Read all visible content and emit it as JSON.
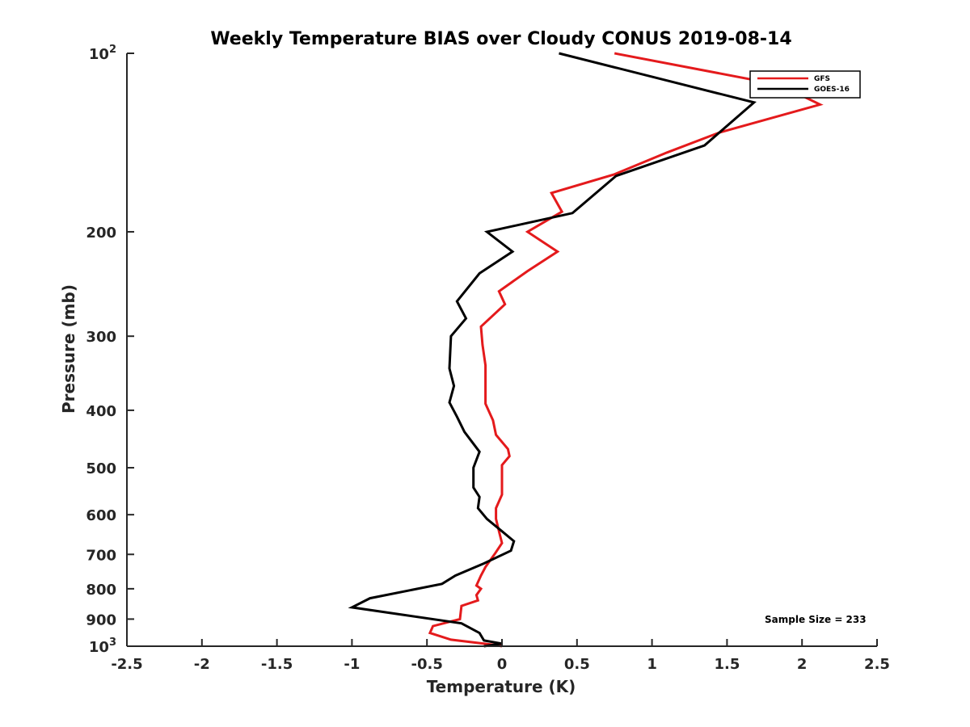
{
  "chart_data": {
    "type": "line",
    "title": "Weekly Temperature BIAS over Cloudy CONUS 2019-08-14",
    "xlabel": "Temperature (K)",
    "ylabel": "Pressure (mb)",
    "xlim": [
      -2.5,
      2.5
    ],
    "ylim": [
      100,
      1000
    ],
    "y_scale": "log",
    "y_reversed": true,
    "grid": false,
    "legend_position": "top-right",
    "x_ticks": [
      {
        "value": -2.5,
        "label": "-2.5"
      },
      {
        "value": -2,
        "label": "-2"
      },
      {
        "value": -1.5,
        "label": "-1.5"
      },
      {
        "value": -1,
        "label": "-1"
      },
      {
        "value": -0.5,
        "label": "-0.5"
      },
      {
        "value": 0,
        "label": "0"
      },
      {
        "value": 0.5,
        "label": "0.5"
      },
      {
        "value": 1,
        "label": "1"
      },
      {
        "value": 1.5,
        "label": "1.5"
      },
      {
        "value": 2,
        "label": "2"
      },
      {
        "value": 2.5,
        "label": "2.5"
      }
    ],
    "y_ticks": [
      {
        "value": 100,
        "base": "10",
        "exp": "2"
      },
      {
        "value": 200,
        "label": "200"
      },
      {
        "value": 300,
        "label": "300"
      },
      {
        "value": 400,
        "label": "400"
      },
      {
        "value": 500,
        "label": "500"
      },
      {
        "value": 600,
        "label": "600"
      },
      {
        "value": 700,
        "label": "700"
      },
      {
        "value": 800,
        "label": "800"
      },
      {
        "value": 900,
        "label": "900"
      },
      {
        "value": 1000,
        "base": "10",
        "exp": "3"
      }
    ],
    "series": [
      {
        "name": "GFS",
        "color": "#e41a1c",
        "points": [
          [
            0.75,
            100
          ],
          [
            1.85,
            113
          ],
          [
            2.12,
            122
          ],
          [
            1.45,
            136
          ],
          [
            1.1,
            147
          ],
          [
            0.75,
            160
          ],
          [
            0.33,
            172
          ],
          [
            0.4,
            185
          ],
          [
            0.17,
            200
          ],
          [
            0.37,
            216
          ],
          [
            0.17,
            233
          ],
          [
            -0.02,
            252
          ],
          [
            0.02,
            265
          ],
          [
            -0.14,
            289
          ],
          [
            -0.13,
            310
          ],
          [
            -0.11,
            336
          ],
          [
            -0.11,
            364
          ],
          [
            -0.11,
            390
          ],
          [
            -0.06,
            416
          ],
          [
            -0.04,
            440
          ],
          [
            0.04,
            465
          ],
          [
            0.05,
            478
          ],
          [
            0.0,
            495
          ],
          [
            0.0,
            520
          ],
          [
            0.0,
            555
          ],
          [
            -0.04,
            585
          ],
          [
            -0.04,
            610
          ],
          [
            -0.02,
            640
          ],
          [
            0.0,
            670
          ],
          [
            -0.05,
            700
          ],
          [
            -0.11,
            735
          ],
          [
            -0.14,
            760
          ],
          [
            -0.17,
            790
          ],
          [
            -0.14,
            800
          ],
          [
            -0.17,
            820
          ],
          [
            -0.16,
            837
          ],
          [
            -0.27,
            855
          ],
          [
            -0.28,
            900
          ],
          [
            -0.46,
            925
          ],
          [
            -0.48,
            950
          ],
          [
            -0.34,
            975
          ],
          [
            -0.05,
            995
          ],
          [
            0.0,
            1000
          ]
        ]
      },
      {
        "name": "GOES-16",
        "color": "#000000",
        "points": [
          [
            0.38,
            100
          ],
          [
            1.68,
            121
          ],
          [
            1.35,
            143
          ],
          [
            0.76,
            161
          ],
          [
            0.47,
            186
          ],
          [
            -0.1,
            200
          ],
          [
            0.07,
            216
          ],
          [
            -0.15,
            235
          ],
          [
            -0.3,
            262
          ],
          [
            -0.24,
            280
          ],
          [
            -0.34,
            300
          ],
          [
            -0.35,
            340
          ],
          [
            -0.32,
            364
          ],
          [
            -0.35,
            388
          ],
          [
            -0.3,
            410
          ],
          [
            -0.25,
            435
          ],
          [
            -0.15,
            470
          ],
          [
            -0.19,
            500
          ],
          [
            -0.19,
            540
          ],
          [
            -0.15,
            560
          ],
          [
            -0.16,
            585
          ],
          [
            -0.1,
            610
          ],
          [
            0.0,
            640
          ],
          [
            0.08,
            665
          ],
          [
            0.06,
            690
          ],
          [
            -0.12,
            725
          ],
          [
            -0.31,
            760
          ],
          [
            -0.4,
            785
          ],
          [
            -0.88,
            830
          ],
          [
            -1.0,
            860
          ],
          [
            -0.27,
            915
          ],
          [
            -0.15,
            950
          ],
          [
            -0.12,
            978
          ],
          [
            0.0,
            990
          ],
          [
            -0.12,
            1000
          ]
        ]
      }
    ],
    "annotation": "Sample Size = 233"
  }
}
